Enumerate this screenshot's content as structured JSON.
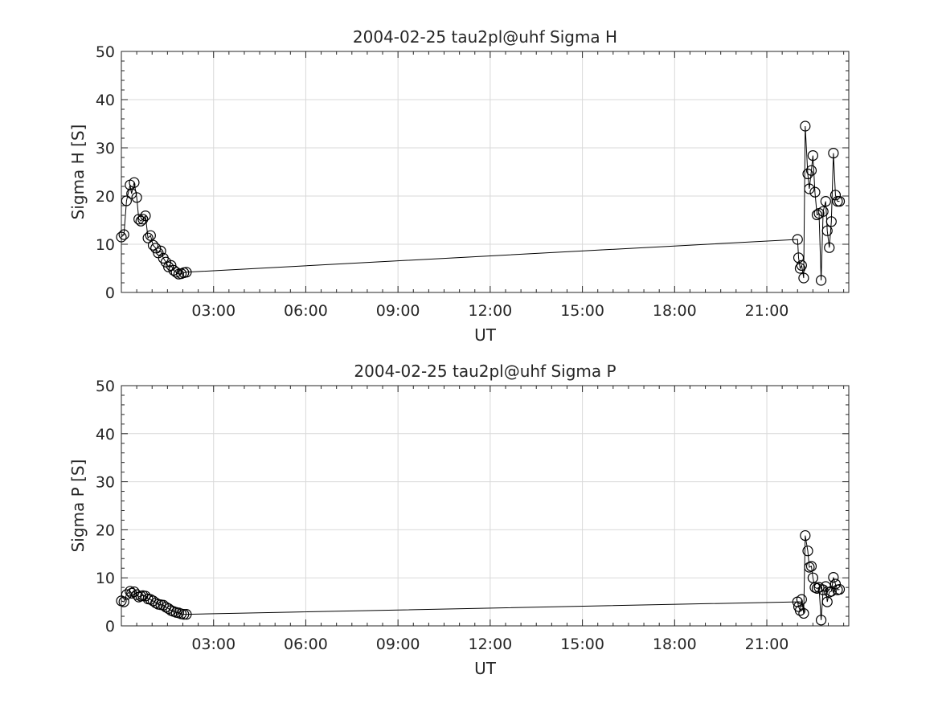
{
  "chart_data": [
    {
      "type": "scatter",
      "title": "2004-02-25  tau2pl@uhf Sigma H",
      "xlabel": "UT",
      "ylabel": "Sigma H [S]",
      "xlim": [
        "00:00",
        "23:40"
      ],
      "ylim": [
        0,
        50
      ],
      "xticks": [
        "03:00",
        "06:00",
        "09:00",
        "12:00",
        "15:00",
        "18:00",
        "21:00"
      ],
      "yticks": [
        "0",
        "10",
        "20",
        "30",
        "40",
        "50"
      ],
      "grid": true,
      "series": [
        {
          "x": [
            "00:00",
            "00:05",
            "00:10",
            "00:17",
            "00:20",
            "00:25",
            "00:30",
            "00:34",
            "00:38",
            "00:42",
            "00:47",
            "00:52",
            "00:57",
            "01:02",
            "01:07",
            "01:12",
            "01:17",
            "01:22",
            "01:27",
            "01:32",
            "01:37",
            "01:42",
            "01:47",
            "01:52",
            "01:57",
            "02:02",
            "02:07",
            "22:00",
            "22:02",
            "22:05",
            "22:08",
            "22:12",
            "22:15",
            "22:20",
            "22:23",
            "22:27",
            "22:30",
            "22:34",
            "22:38",
            "22:42",
            "22:46",
            "22:50",
            "22:55",
            "22:58",
            "23:02",
            "23:06",
            "23:10",
            "23:14",
            "23:18",
            "23:22"
          ],
          "y": [
            11.5,
            12,
            19,
            22.3,
            20.5,
            22.8,
            19.7,
            15.2,
            14.8,
            15.2,
            15.9,
            11.3,
            11.8,
            9.8,
            9.2,
            8.2,
            8.6,
            7.1,
            6.3,
            5.3,
            5.6,
            4.6,
            4.2,
            3.8,
            3.9,
            4.1,
            4.2,
            11,
            7.2,
            5,
            5.6,
            3,
            34.5,
            24.6,
            21.5,
            25.3,
            28.4,
            20.8,
            16.1,
            16.4,
            2.5,
            16.8,
            18.9,
            12.8,
            9.3,
            14.7,
            28.9,
            20.2,
            18.9,
            18.9
          ]
        }
      ]
    },
    {
      "type": "scatter",
      "title": "2004-02-25  tau2pl@uhf Sigma P",
      "xlabel": "UT",
      "ylabel": "Sigma P [S]",
      "xlim": [
        "00:00",
        "23:40"
      ],
      "ylim": [
        0,
        50
      ],
      "xticks": [
        "03:00",
        "06:00",
        "09:00",
        "12:00",
        "15:00",
        "18:00",
        "21:00"
      ],
      "yticks": [
        "0",
        "10",
        "20",
        "30",
        "40",
        "50"
      ],
      "grid": true,
      "series": [
        {
          "x": [
            "00:00",
            "00:05",
            "00:10",
            "00:17",
            "00:20",
            "00:25",
            "00:30",
            "00:34",
            "00:38",
            "00:42",
            "00:47",
            "00:52",
            "00:57",
            "01:02",
            "01:07",
            "01:12",
            "01:17",
            "01:22",
            "01:27",
            "01:32",
            "01:37",
            "01:42",
            "01:47",
            "01:52",
            "01:57",
            "02:02",
            "02:07",
            "22:00",
            "22:02",
            "22:05",
            "22:08",
            "22:12",
            "22:15",
            "22:20",
            "22:23",
            "22:27",
            "22:30",
            "22:34",
            "22:38",
            "22:42",
            "22:46",
            "22:50",
            "22:55",
            "22:58",
            "23:02",
            "23:06",
            "23:10",
            "23:14",
            "23:18",
            "23:22"
          ],
          "y": [
            5.2,
            5,
            6.5,
            7.2,
            6.8,
            7.1,
            6.5,
            6,
            6.2,
            6.3,
            6.2,
            5.6,
            5.5,
            5.2,
            4.8,
            4.5,
            4.4,
            4.3,
            3.9,
            3.6,
            3.2,
            3,
            2.8,
            2.7,
            2.5,
            2.4,
            2.4,
            5,
            4,
            3.2,
            5.5,
            2.6,
            18.8,
            15.6,
            12.2,
            12.4,
            10,
            8,
            7.8,
            8,
            1.2,
            7.5,
            8.2,
            5,
            7,
            7.2,
            10.1,
            8.7,
            7.5,
            7.6
          ]
        }
      ]
    }
  ]
}
